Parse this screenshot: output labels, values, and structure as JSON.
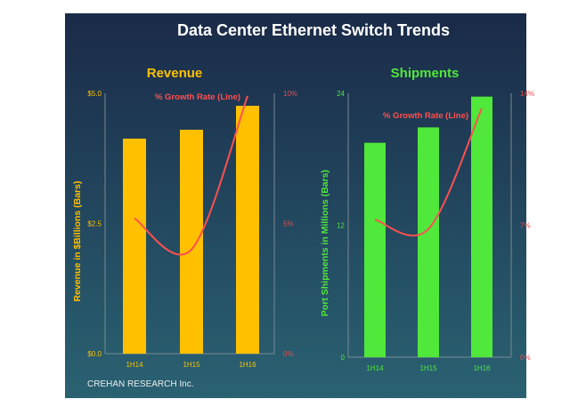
{
  "title": "Data Center Ethernet Switch Trends",
  "footer": "CREHAN RESEARCH Inc.",
  "colors": {
    "revenue_bar": "#ffc000",
    "shipment_bar": "#50e83a",
    "growth_line": "#ff5050",
    "background_top": "#1a2a48",
    "background_bottom": "#2a6070"
  },
  "chart_data": [
    {
      "type": "bar",
      "title": "Revenue",
      "categories": [
        "1H14",
        "1H15",
        "1H16"
      ],
      "ylabel": "Revenue in $Billions (Bars)",
      "ylim": [
        0,
        5
      ],
      "y_ticks": [
        "$0.0",
        "$2.5",
        "$5.0"
      ],
      "values": [
        4.13,
        4.3,
        4.76
      ],
      "line": {
        "name": "% Growth Rate (Line)",
        "values": [
          5.2,
          4.0,
          9.9
        ],
        "ylim": [
          0,
          10
        ],
        "y_ticks": [
          "0%",
          "5%",
          "10%"
        ]
      },
      "grid": false
    },
    {
      "type": "bar",
      "title": "Shipments",
      "categories": [
        "1H14",
        "1H15",
        "1H16"
      ],
      "ylabel": "Port Shipments in Millions (Bars)",
      "ylim": [
        0,
        24
      ],
      "y_ticks": [
        "0",
        "12",
        "24"
      ],
      "values": [
        19.5,
        20.9,
        23.7
      ],
      "line": {
        "name": "% Growth Rate (Line)",
        "values": [
          7.3,
          6.8,
          13.2
        ],
        "ylim": [
          0,
          14
        ],
        "y_ticks": [
          "0%",
          "7%",
          "14%"
        ]
      },
      "grid": false
    }
  ]
}
